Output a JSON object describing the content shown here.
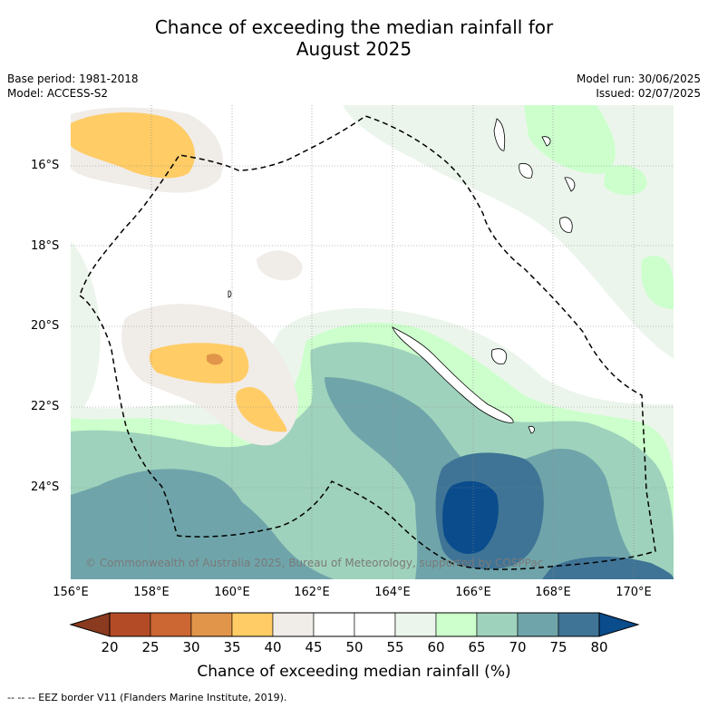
{
  "title": {
    "line1": "Chance of exceeding the median rainfall for",
    "line2": "August 2025"
  },
  "meta": {
    "base_period": "Base period: 1981-2018",
    "model": "Model: ACCESS-S2",
    "model_run": "Model run: 30/06/2025",
    "issued": "Issued: 02/07/2025"
  },
  "axes": {
    "lat_labels": [
      "16°S",
      "18°S",
      "20°S",
      "22°S",
      "24°S"
    ],
    "lon_labels": [
      "156°E",
      "158°E",
      "160°E",
      "162°E",
      "164°E",
      "166°E",
      "168°E",
      "170°E"
    ]
  },
  "copyright": "© Commonwealth of Australia 2025, Bureau of Meteorology, supported by COSPPac",
  "colorbar": {
    "ticks": [
      "20",
      "25",
      "30",
      "35",
      "40",
      "45",
      "50",
      "55",
      "60",
      "65",
      "70",
      "75",
      "80"
    ],
    "label": "Chance of exceeding median rainfall (%)",
    "colors": [
      "#8a3a1e",
      "#b34c26",
      "#cc6633",
      "#e0954a",
      "#ffcc66",
      "#f0ece8",
      "#ffffff",
      "#ffffff",
      "#ecf5ec",
      "#ccffcc",
      "#9fd2bc",
      "#6fa5aa",
      "#3f7496",
      "#0a4c8c"
    ]
  },
  "legend_note": "--  --  -- EEZ border V11 (Flanders Marine Institute, 2019)."
}
